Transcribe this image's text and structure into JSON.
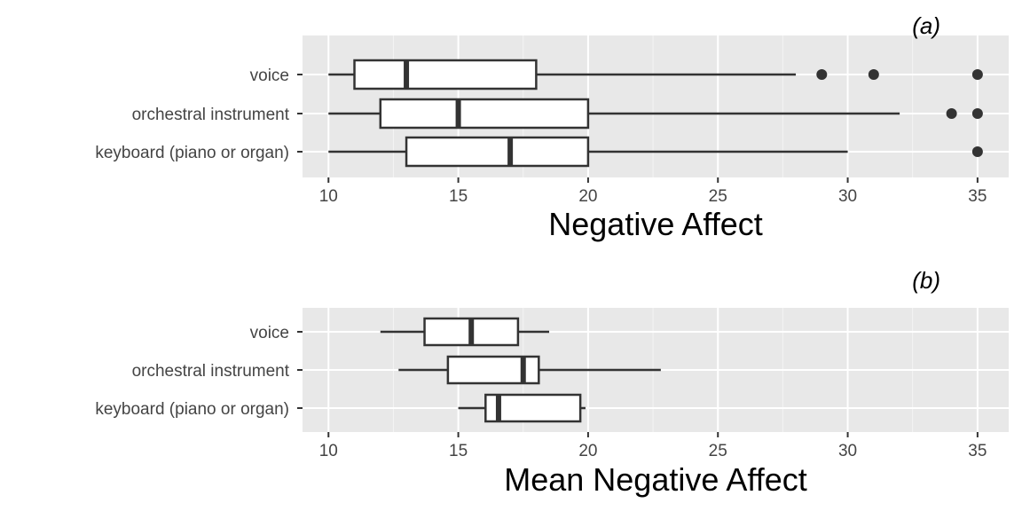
{
  "chart_data": [
    {
      "type": "boxplot",
      "tag": "(a)",
      "title": "",
      "xlabel": "Negative Affect",
      "ylabel": "",
      "xlim": [
        9,
        36.2
      ],
      "x_ticks": [
        10,
        15,
        20,
        25,
        30,
        35
      ],
      "categories": [
        "voice",
        "orchestral instrument",
        "keyboard (piano or organ)"
      ],
      "boxes": [
        {
          "category": "voice",
          "low": 10,
          "q1": 11,
          "median": 13,
          "q3": 18,
          "high": 28,
          "outliers": [
            29,
            31,
            35
          ]
        },
        {
          "category": "orchestral instrument",
          "low": 10,
          "q1": 12,
          "median": 15,
          "q3": 20,
          "high": 32,
          "outliers": [
            34,
            35
          ]
        },
        {
          "category": "keyboard (piano or organ)",
          "low": 10,
          "q1": 13,
          "median": 17,
          "q3": 20,
          "high": 30,
          "outliers": [
            35
          ]
        }
      ],
      "grid": true
    },
    {
      "type": "boxplot",
      "tag": "(b)",
      "title": "",
      "xlabel": "Mean Negative Affect",
      "ylabel": "",
      "xlim": [
        9,
        36.2
      ],
      "x_ticks": [
        10,
        15,
        20,
        25,
        30,
        35
      ],
      "categories": [
        "voice",
        "orchestral instrument",
        "keyboard (piano or organ)"
      ],
      "boxes": [
        {
          "category": "voice",
          "low": 12,
          "q1": 13.7,
          "median": 15.5,
          "q3": 17.3,
          "high": 18.5,
          "outliers": []
        },
        {
          "category": "orchestral instrument",
          "low": 12.7,
          "q1": 14.6,
          "median": 17.5,
          "q3": 18.1,
          "high": 22.8,
          "outliers": []
        },
        {
          "category": "keyboard (piano or organ)",
          "low": 15,
          "q1": 16.05,
          "median": 16.55,
          "q3": 19.7,
          "high": 19.9,
          "outliers": []
        }
      ],
      "grid": true
    }
  ]
}
